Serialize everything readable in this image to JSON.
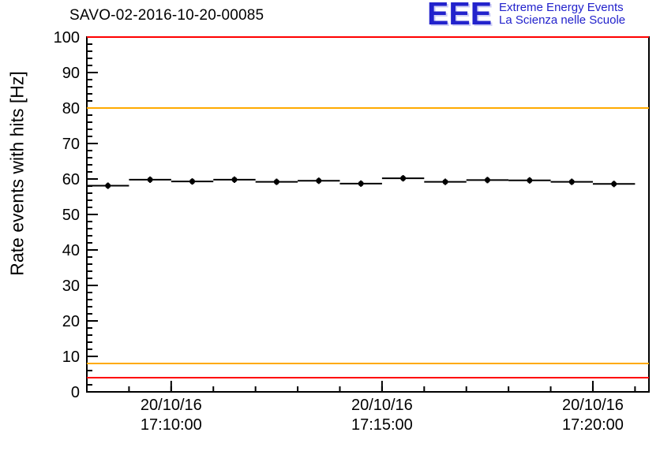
{
  "logo": {
    "acronym": "EEE",
    "line1": "Extreme Energy Events",
    "line2": "La Scienza nelle Scuole",
    "color": "#2222cc"
  },
  "chart_data": {
    "type": "scatter",
    "title": "SAVO-02-2016-10-20-00085",
    "ylabel": "Rate events with hits [Hz]",
    "ylim": [
      0,
      100
    ],
    "y_major_tick_step": 10,
    "y_minor_tick_step": 2,
    "xlim_minutes_after_17h": [
      8.0,
      21.33
    ],
    "x_minor_tick_step_minutes": 1,
    "grid": false,
    "legend": false,
    "x_ticks": [
      {
        "minute": 10,
        "date": "20/10/16",
        "time": "17:10:00"
      },
      {
        "minute": 15,
        "date": "20/10/16",
        "time": "17:15:00"
      },
      {
        "minute": 20,
        "date": "20/10/16",
        "time": "17:20:00"
      }
    ],
    "reference_lines": [
      {
        "y": 100,
        "color": "#ff0000"
      },
      {
        "y": 80,
        "color": "#ffaa00"
      },
      {
        "y": 8,
        "color": "#ffaa00"
      },
      {
        "y": 4,
        "color": "#ff0000"
      }
    ],
    "series": [
      {
        "name": "rate-events-with-hits",
        "marker_color": "#000000",
        "points": [
          {
            "x": 8.5,
            "y": 58.1,
            "yerr": 0.9,
            "xerr": 0.5
          },
          {
            "x": 9.5,
            "y": 59.8,
            "yerr": 0.9,
            "xerr": 0.5
          },
          {
            "x": 10.5,
            "y": 59.3,
            "yerr": 0.9,
            "xerr": 0.5
          },
          {
            "x": 11.5,
            "y": 59.8,
            "yerr": 0.9,
            "xerr": 0.5
          },
          {
            "x": 12.5,
            "y": 59.2,
            "yerr": 0.9,
            "xerr": 0.5
          },
          {
            "x": 13.5,
            "y": 59.5,
            "yerr": 0.9,
            "xerr": 0.5
          },
          {
            "x": 14.5,
            "y": 58.7,
            "yerr": 0.9,
            "xerr": 0.5
          },
          {
            "x": 15.5,
            "y": 60.2,
            "yerr": 0.9,
            "xerr": 0.5
          },
          {
            "x": 16.5,
            "y": 59.2,
            "yerr": 0.9,
            "xerr": 0.5
          },
          {
            "x": 17.5,
            "y": 59.7,
            "yerr": 0.9,
            "xerr": 0.5
          },
          {
            "x": 18.5,
            "y": 59.6,
            "yerr": 0.9,
            "xerr": 0.5
          },
          {
            "x": 19.5,
            "y": 59.2,
            "yerr": 0.9,
            "xerr": 0.5
          },
          {
            "x": 20.5,
            "y": 58.6,
            "yerr": 0.9,
            "xerr": 0.5
          }
        ]
      }
    ]
  }
}
